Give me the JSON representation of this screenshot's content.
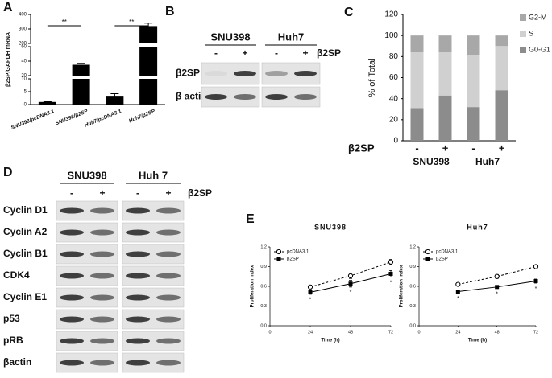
{
  "chart_data": [
    {
      "type": "bar",
      "panel_label": "A",
      "ylabel": "β2SP/GAPDH mRNA",
      "categories": [
        "SNU398/pcDNA3.1",
        "SNU398/β2SP",
        "Huh7/pcDNA3.1",
        "Huh7/β2SP"
      ],
      "values": [
        1,
        35,
        3.4,
        320
      ],
      "errors": [
        0.1,
        2,
        0.8,
        20
      ],
      "color": "#000000",
      "y_segments": [
        {
          "ylim": [
            0,
            10
          ],
          "yticks": [
            0,
            5,
            10
          ]
        },
        {
          "ylim": [
            20,
            60
          ],
          "yticks": [
            20,
            40,
            60
          ]
        },
        {
          "ylim": [
            200,
            400
          ],
          "yticks": [
            200,
            300,
            400
          ]
        }
      ],
      "annotations": [
        "**",
        "**"
      ]
    },
    {
      "type": "stacked_bar",
      "panel_label": "C",
      "ylabel": "% of Total",
      "factor_label": "β2SP",
      "categories": [
        "-",
        "+",
        "-",
        "+"
      ],
      "groups": [
        "SNU398",
        "Huh7"
      ],
      "series": [
        {
          "name": "G0-G1",
          "color": "#8c8c8c",
          "values": [
            31,
            43,
            32,
            48
          ]
        },
        {
          "name": "S",
          "color": "#d0d0d0",
          "values": [
            53,
            41,
            49,
            42
          ]
        },
        {
          "name": "G2-M",
          "color": "#a8a8a8",
          "values": [
            16,
            16,
            19,
            10
          ]
        }
      ],
      "ylim": [
        0,
        120
      ],
      "yticks": [
        0,
        20,
        40,
        60,
        80,
        100,
        120
      ]
    },
    {
      "type": "line",
      "panel_label": "E",
      "title": "SNU398",
      "xlabel": "Time (h)",
      "ylabel": "Proliferation Index",
      "x": [
        24,
        48,
        72
      ],
      "xlim": [
        0,
        72
      ],
      "xticks": [
        0,
        24,
        48,
        72
      ],
      "ylim": [
        0,
        1.2
      ],
      "yticks": [
        {
          "value": 0,
          "label": "0.0"
        },
        0.3,
        0.6,
        0.9,
        1.2
      ],
      "series": [
        {
          "name": "pcDNA3.1",
          "color": "#000000",
          "dashed": true,
          "marker": "open-circle",
          "values": [
            0.59,
            0.76,
            0.97
          ],
          "errors": [
            0.03,
            0.04,
            0.04
          ]
        },
        {
          "name": "β2SP",
          "color": "#000000",
          "dashed": false,
          "marker": "square",
          "values": [
            0.51,
            0.64,
            0.79
          ],
          "errors": [
            0.03,
            0.05,
            0.05
          ],
          "point_labels": [
            "*",
            "*",
            "*"
          ]
        }
      ]
    },
    {
      "type": "line",
      "title": "Huh7",
      "xlabel": "Time (h)",
      "ylabel": "Proliferation Index",
      "x": [
        24,
        48,
        72
      ],
      "xlim": [
        0,
        72
      ],
      "xticks": [
        0,
        24,
        48,
        72
      ],
      "ylim": [
        0,
        1.2
      ],
      "yticks": [
        {
          "value": 0,
          "label": "0.0"
        },
        0.3,
        0.6,
        0.9,
        1.2
      ],
      "series": [
        {
          "name": "pcDNA3.1",
          "color": "#000000",
          "dashed": true,
          "marker": "open-circle",
          "values": [
            0.63,
            0.75,
            0.9
          ],
          "errors": [
            0.02,
            0.03,
            0.02
          ]
        },
        {
          "name": "β2SP",
          "color": "#000000",
          "dashed": false,
          "marker": "square",
          "values": [
            0.52,
            0.59,
            0.68
          ],
          "errors": [
            0.02,
            0.02,
            0.03
          ],
          "point_labels": [
            "*",
            "*",
            "*"
          ]
        }
      ]
    }
  ],
  "blots": [
    {
      "panel_label": "B",
      "groups": [
        "SNU398",
        "Huh7"
      ],
      "lanes": [
        "-",
        "+",
        "-",
        "+"
      ],
      "treatment": "β2SP",
      "rows": [
        "β2SP",
        "β actin"
      ]
    },
    {
      "panel_label": "D",
      "groups": [
        "SNU398",
        "Huh 7"
      ],
      "lanes": [
        "-",
        "+",
        "-",
        "+"
      ],
      "treatment": "β2SP",
      "rows": [
        "Cyclin D1",
        "Cyclin A2",
        "Cyclin B1",
        "CDK4",
        "Cyclin E1",
        "p53",
        "pRB",
        "βactin"
      ]
    }
  ]
}
